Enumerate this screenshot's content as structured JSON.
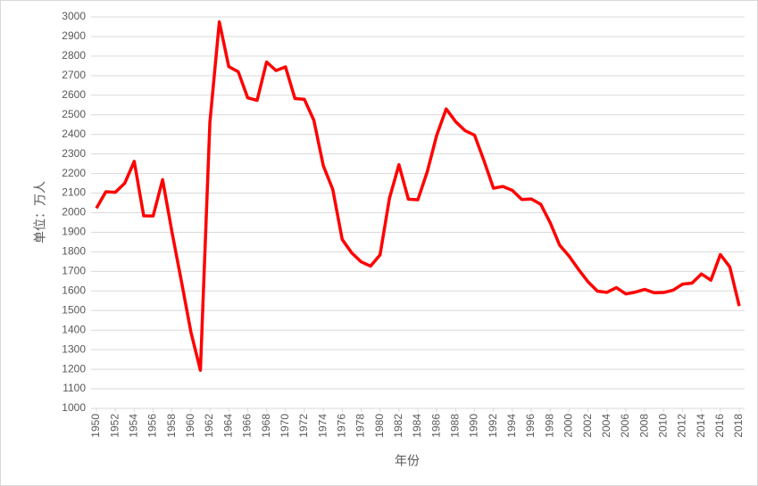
{
  "chart_data": {
    "type": "line",
    "x_label": "年份",
    "y_label": "单位：万人",
    "x": [
      1950,
      1951,
      1952,
      1953,
      1954,
      1955,
      1956,
      1957,
      1958,
      1959,
      1960,
      1961,
      1962,
      1963,
      1964,
      1965,
      1966,
      1967,
      1968,
      1969,
      1970,
      1971,
      1972,
      1973,
      1974,
      1975,
      1976,
      1977,
      1978,
      1979,
      1980,
      1981,
      1982,
      1983,
      1984,
      1985,
      1986,
      1987,
      1988,
      1989,
      1990,
      1991,
      1992,
      1993,
      1994,
      1995,
      1996,
      1997,
      1998,
      1999,
      2000,
      2001,
      2002,
      2003,
      2004,
      2005,
      2006,
      2007,
      2008,
      2009,
      2010,
      2011,
      2012,
      2013,
      2014,
      2015,
      2016,
      2017,
      2018
    ],
    "series": [
      {
        "color": "#ff0000",
        "values": [
          2023,
          2107,
          2104,
          2151,
          2262,
          1984,
          1983,
          2169,
          1899,
          1647,
          1389,
          1195,
          2460,
          2975,
          2746,
          2720,
          2587,
          2574,
          2770,
          2726,
          2745,
          2583,
          2579,
          2472,
          2240,
          2119,
          1863,
          1795,
          1749,
          1727,
          1784,
          2074,
          2245,
          2069,
          2066,
          2210,
          2396,
          2530,
          2465,
          2419,
          2396,
          2265,
          2125,
          2134,
          2114,
          2067,
          2070,
          2043,
          1949,
          1834,
          1778,
          1710,
          1647,
          1599,
          1593,
          1617,
          1585,
          1594,
          1608,
          1591,
          1592,
          1604,
          1635,
          1640,
          1687,
          1655,
          1786,
          1723,
          1523
        ]
      }
    ],
    "xlim": [
      1950,
      2018
    ],
    "xticks": [
      1950,
      1952,
      1954,
      1956,
      1958,
      1960,
      1962,
      1964,
      1966,
      1968,
      1970,
      1972,
      1974,
      1976,
      1978,
      1980,
      1982,
      1984,
      1986,
      1988,
      1990,
      1992,
      1994,
      1996,
      1998,
      2000,
      2002,
      2004,
      2006,
      2008,
      2010,
      2012,
      2014,
      2016,
      2018
    ],
    "ylim": [
      1000,
      3000
    ],
    "yticks": [
      1000,
      1100,
      1200,
      1300,
      1400,
      1500,
      1600,
      1700,
      1800,
      1900,
      2000,
      2100,
      2200,
      2300,
      2400,
      2500,
      2600,
      2700,
      2800,
      2900,
      3000
    ],
    "grid": true
  }
}
